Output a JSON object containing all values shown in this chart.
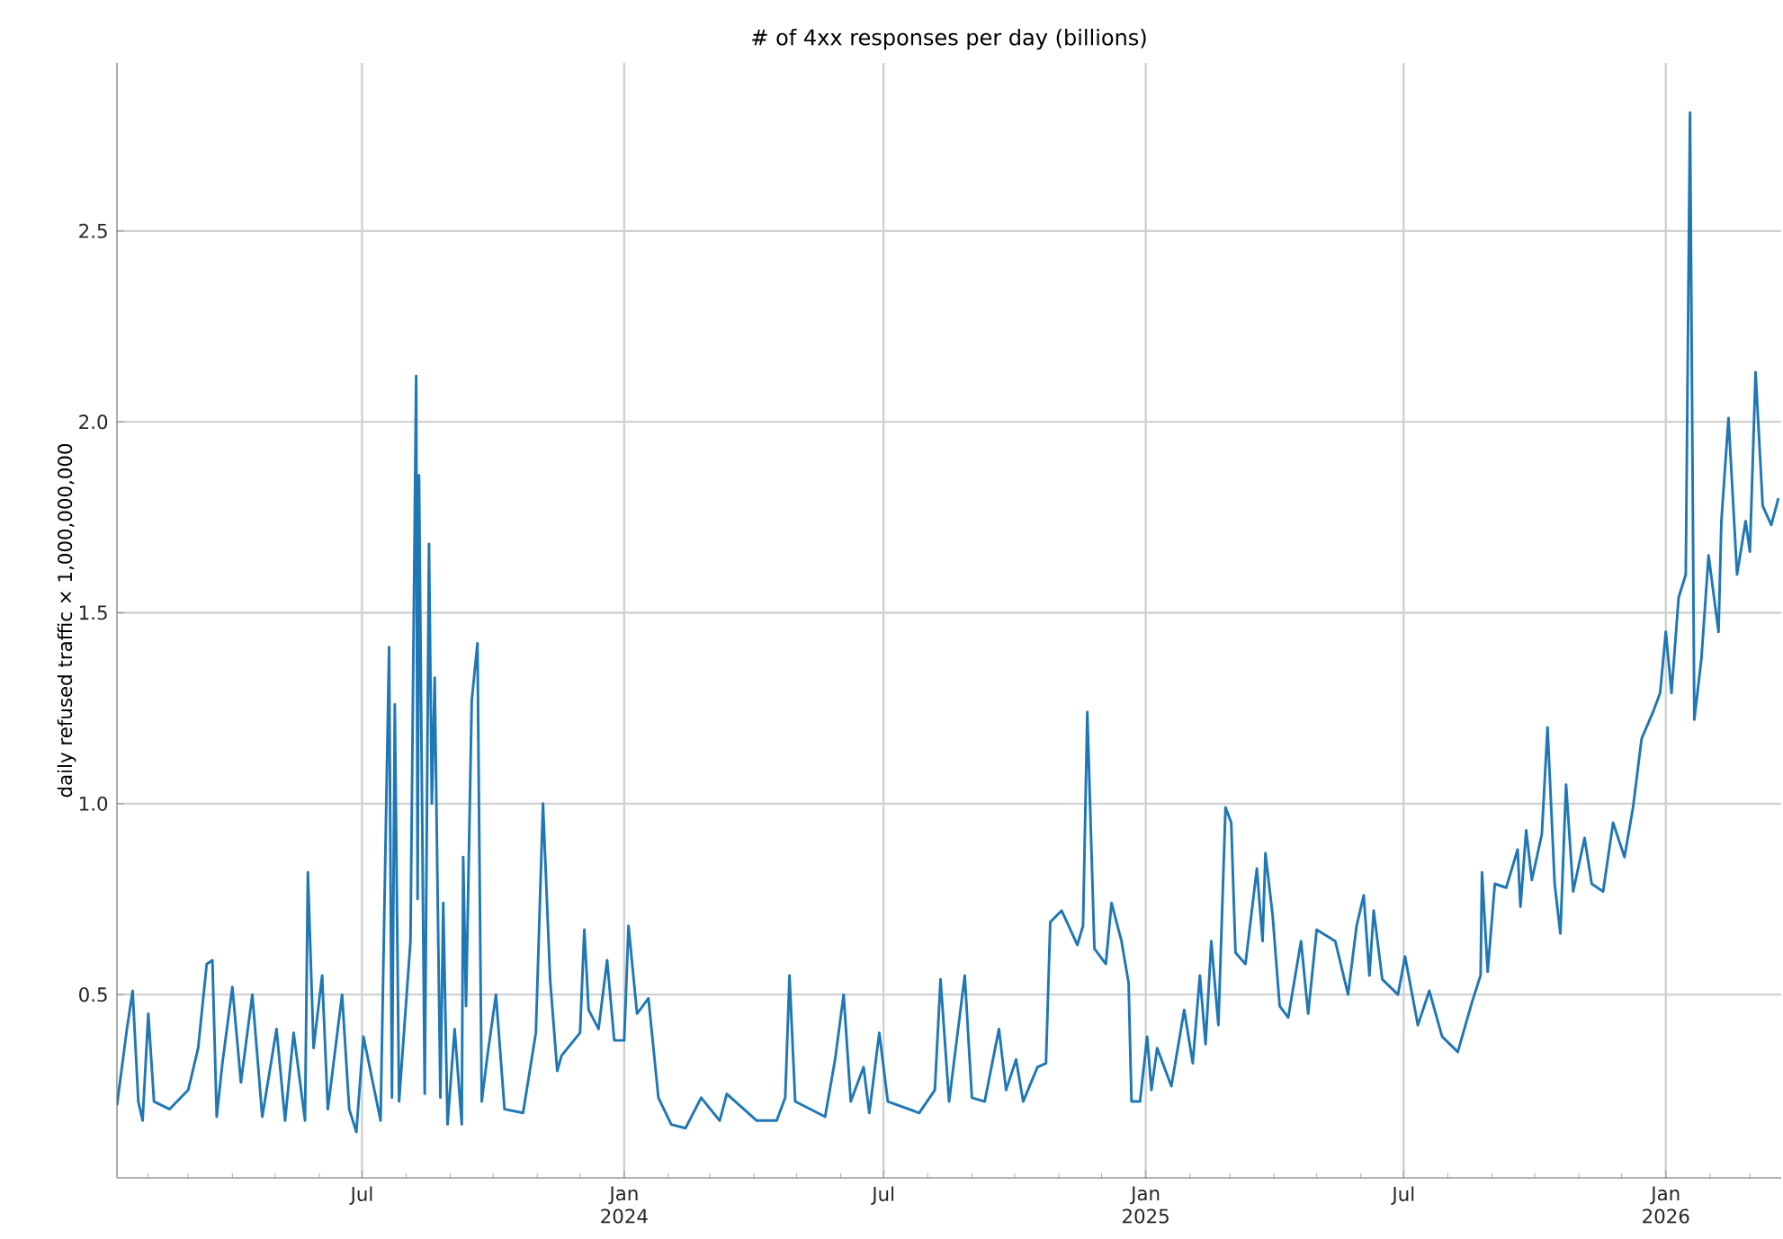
{
  "chart_data": {
    "type": "line",
    "title": "# of 4xx responses per day (billions)",
    "ylabel": "daily refused traffic × 1,000,000,000",
    "xlim": [
      "2023-01-10",
      "2026-03-23"
    ],
    "ylim": [
      0.02,
      2.94
    ],
    "xticks": [
      {
        "value": "2023-02-01",
        "label": null
      },
      {
        "value": "2023-03-01",
        "label": null
      },
      {
        "value": "2023-04-01",
        "label": null
      },
      {
        "value": "2023-05-01",
        "label": null
      },
      {
        "value": "2023-06-01",
        "label": null
      },
      {
        "value": "2023-07-01",
        "label": "Jul"
      },
      {
        "value": "2023-08-01",
        "label": null
      },
      {
        "value": "2023-09-01",
        "label": null
      },
      {
        "value": "2023-10-01",
        "label": null
      },
      {
        "value": "2023-11-01",
        "label": null
      },
      {
        "value": "2023-12-01",
        "label": null
      },
      {
        "value": "2024-01-01",
        "label": "Jan 2024"
      },
      {
        "value": "2024-02-01",
        "label": null
      },
      {
        "value": "2024-03-01",
        "label": null
      },
      {
        "value": "2024-04-01",
        "label": null
      },
      {
        "value": "2024-05-01",
        "label": null
      },
      {
        "value": "2024-06-01",
        "label": null
      },
      {
        "value": "2024-07-01",
        "label": "Jul"
      },
      {
        "value": "2024-08-01",
        "label": null
      },
      {
        "value": "2024-09-01",
        "label": null
      },
      {
        "value": "2024-10-01",
        "label": null
      },
      {
        "value": "2024-11-01",
        "label": null
      },
      {
        "value": "2024-12-01",
        "label": null
      },
      {
        "value": "2025-01-01",
        "label": "Jan 2025"
      },
      {
        "value": "2025-02-01",
        "label": null
      },
      {
        "value": "2025-03-01",
        "label": null
      },
      {
        "value": "2025-04-01",
        "label": null
      },
      {
        "value": "2025-05-01",
        "label": null
      },
      {
        "value": "2025-06-01",
        "label": null
      },
      {
        "value": "2025-07-01",
        "label": "Jul"
      },
      {
        "value": "2025-08-01",
        "label": null
      },
      {
        "value": "2025-09-01",
        "label": null
      },
      {
        "value": "2025-10-01",
        "label": null
      },
      {
        "value": "2025-11-01",
        "label": null
      },
      {
        "value": "2025-12-01",
        "label": null
      },
      {
        "value": "2026-01-01",
        "label": "Jan 2026"
      },
      {
        "value": "2026-02-01",
        "label": null
      },
      {
        "value": "2026-03-01",
        "label": null
      }
    ],
    "yticks": [
      0.5,
      {
        "value": 1.0,
        "label": "1.0"
      },
      1.5,
      {
        "value": 2.0,
        "label": "2.0"
      },
      2.5
    ],
    "grid": true,
    "series": [
      {
        "color": "#1f77b4",
        "x": [
          "2023-01-10",
          "2023-01-17",
          "2023-01-21",
          "2023-01-25",
          "2023-01-28",
          "2023-02-01",
          "2023-02-05",
          "2023-02-16",
          "2023-03-01",
          "2023-03-08",
          "2023-03-14",
          "2023-03-18",
          "2023-03-21",
          "2023-03-25",
          "2023-04-01",
          "2023-04-07",
          "2023-04-15",
          "2023-04-22",
          "2023-05-02",
          "2023-05-08",
          "2023-05-14",
          "2023-05-22",
          "2023-05-24",
          "2023-05-28",
          "2023-06-03",
          "2023-06-07",
          "2023-06-17",
          "2023-06-22",
          "2023-06-27",
          "2023-07-02",
          "2023-07-14",
          "2023-07-20",
          "2023-07-22",
          "2023-07-24",
          "2023-07-27",
          "2023-08-04",
          "2023-08-08",
          "2023-08-09",
          "2023-08-10",
          "2023-08-14",
          "2023-08-17",
          "2023-08-19",
          "2023-08-21",
          "2023-08-25",
          "2023-08-27",
          "2023-08-30",
          "2023-09-04",
          "2023-09-09",
          "2023-09-10",
          "2023-09-12",
          "2023-09-16",
          "2023-09-20",
          "2023-09-23",
          "2023-09-27",
          "2023-10-03",
          "2023-10-09",
          "2023-10-22",
          "2023-10-31",
          "2023-11-05",
          "2023-11-10",
          "2023-11-15",
          "2023-11-18",
          "2023-12-01",
          "2023-12-04",
          "2023-12-07",
          "2023-12-14",
          "2023-12-20",
          "2023-12-25",
          "2024-01-01",
          "2024-01-04",
          "2024-01-10",
          "2024-01-18",
          "2024-01-25",
          "2024-02-03",
          "2024-02-13",
          "2024-02-24",
          "2024-03-08",
          "2024-03-13",
          "2024-04-03",
          "2024-04-17",
          "2024-04-23",
          "2024-04-26",
          "2024-04-30",
          "2024-05-21",
          "2024-05-28",
          "2024-06-03",
          "2024-06-08",
          "2024-06-17",
          "2024-06-21",
          "2024-06-28",
          "2024-07-04",
          "2024-07-26",
          "2024-08-06",
          "2024-08-10",
          "2024-08-16",
          "2024-08-27",
          "2024-09-01",
          "2024-09-10",
          "2024-09-20",
          "2024-09-25",
          "2024-10-02",
          "2024-10-07",
          "2024-10-17",
          "2024-10-23",
          "2024-10-26",
          "2024-11-03",
          "2024-11-14",
          "2024-11-18",
          "2024-11-21",
          "2024-11-26",
          "2024-12-04",
          "2024-12-08",
          "2024-12-15",
          "2024-12-20",
          "2024-12-22",
          "2024-12-28",
          "2025-01-02",
          "2025-01-05",
          "2025-01-09",
          "2025-01-19",
          "2025-01-28",
          "2025-02-03",
          "2025-02-08",
          "2025-02-12",
          "2025-02-16",
          "2025-02-21",
          "2025-02-26",
          "2025-03-02",
          "2025-03-05",
          "2025-03-12",
          "2025-03-20",
          "2025-03-24",
          "2025-03-26",
          "2025-03-31",
          "2025-04-05",
          "2025-04-11",
          "2025-04-20",
          "2025-04-25",
          "2025-05-01",
          "2025-05-14",
          "2025-05-23",
          "2025-05-29",
          "2025-06-03",
          "2025-06-07",
          "2025-06-10",
          "2025-06-16",
          "2025-06-27",
          "2025-07-02",
          "2025-07-11",
          "2025-07-19",
          "2025-07-28",
          "2025-08-08",
          "2025-08-18",
          "2025-08-24",
          "2025-08-25",
          "2025-08-29",
          "2025-09-03",
          "2025-09-11",
          "2025-09-19",
          "2025-09-21",
          "2025-09-25",
          "2025-09-29",
          "2025-10-06",
          "2025-10-10",
          "2025-10-15",
          "2025-10-19",
          "2025-10-23",
          "2025-10-28",
          "2025-11-05",
          "2025-11-10",
          "2025-11-18",
          "2025-11-25",
          "2025-12-03",
          "2025-12-09",
          "2025-12-15",
          "2025-12-23",
          "2025-12-28",
          "2026-01-01",
          "2026-01-05",
          "2026-01-10",
          "2026-01-15",
          "2026-01-18",
          "2026-01-21",
          "2026-01-26",
          "2026-01-31",
          "2026-02-07",
          "2026-02-09",
          "2026-02-14",
          "2026-02-20",
          "2026-02-26",
          "2026-03-01",
          "2026-03-05",
          "2026-03-10",
          "2026-03-16",
          "2026-03-21"
        ],
        "values": [
          0.21,
          0.41,
          0.51,
          0.22,
          0.17,
          0.45,
          0.22,
          0.2,
          0.25,
          0.36,
          0.58,
          0.59,
          0.18,
          0.32,
          0.52,
          0.27,
          0.5,
          0.18,
          0.41,
          0.17,
          0.4,
          0.17,
          0.82,
          0.36,
          0.55,
          0.2,
          0.5,
          0.2,
          0.14,
          0.39,
          0.17,
          1.41,
          0.23,
          1.26,
          0.22,
          0.64,
          2.12,
          0.75,
          1.86,
          0.24,
          1.68,
          1.0,
          1.33,
          0.23,
          0.74,
          0.16,
          0.41,
          0.16,
          0.86,
          0.47,
          1.27,
          1.42,
          0.22,
          0.34,
          0.5,
          0.2,
          0.19,
          0.4,
          1.0,
          0.54,
          0.3,
          0.34,
          0.4,
          0.67,
          0.46,
          0.41,
          0.59,
          0.38,
          0.38,
          0.68,
          0.45,
          0.49,
          0.23,
          0.16,
          0.15,
          0.23,
          0.17,
          0.24,
          0.17,
          0.17,
          0.23,
          0.55,
          0.22,
          0.18,
          0.33,
          0.5,
          0.22,
          0.31,
          0.19,
          0.4,
          0.22,
          0.19,
          0.25,
          0.54,
          0.22,
          0.55,
          0.23,
          0.22,
          0.41,
          0.25,
          0.33,
          0.22,
          0.31,
          0.32,
          0.69,
          0.72,
          0.63,
          0.68,
          1.24,
          0.62,
          0.58,
          0.74,
          0.64,
          0.53,
          0.22,
          0.22,
          0.39,
          0.25,
          0.36,
          0.26,
          0.46,
          0.32,
          0.55,
          0.37,
          0.64,
          0.42,
          0.99,
          0.95,
          0.61,
          0.58,
          0.83,
          0.64,
          0.87,
          0.71,
          0.47,
          0.44,
          0.64,
          0.45,
          0.67,
          0.64,
          0.5,
          0.68,
          0.76,
          0.55,
          0.72,
          0.54,
          0.5,
          0.6,
          0.42,
          0.51,
          0.39,
          0.35,
          0.48,
          0.55,
          0.82,
          0.56,
          0.79,
          0.78,
          0.88,
          0.73,
          0.93,
          0.8,
          0.92,
          1.2,
          0.79,
          0.66,
          1.05,
          0.77,
          0.91,
          0.79,
          0.77,
          0.95,
          0.86,
          0.99,
          1.17,
          1.24,
          1.29,
          1.45,
          1.29,
          1.54,
          1.6,
          2.81,
          1.22,
          1.38,
          1.65,
          1.45,
          1.74,
          2.01,
          1.6,
          1.74,
          1.66,
          2.13,
          1.78,
          1.73,
          1.8
        ]
      }
    ]
  }
}
